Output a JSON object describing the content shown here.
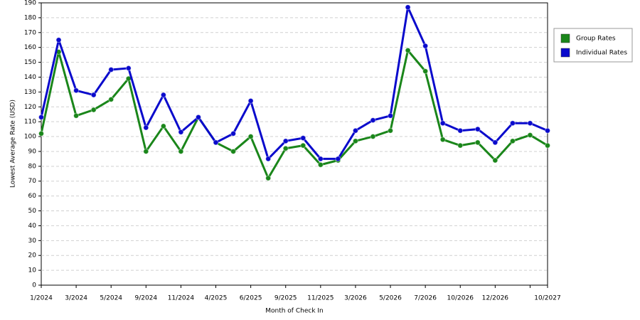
{
  "chart_data": {
    "type": "line",
    "x_label": "Month of Check In",
    "y_label": "Lowest Average Rate (USD)",
    "categories": [
      "1/2024",
      null,
      "3/2024",
      null,
      "5/2024",
      null,
      "9/2024",
      null,
      "11/2024",
      null,
      "4/2025",
      null,
      "6/2025",
      null,
      "9/2025",
      null,
      "11/2025",
      null,
      "3/2026",
      null,
      "5/2026",
      null,
      "7/2026",
      null,
      "10/2026",
      null,
      "12/2026",
      null,
      null,
      "10/2027"
    ],
    "series": [
      {
        "name": "Group Rates",
        "color": "#1a861a",
        "values": [
          102,
          157,
          114,
          118,
          125,
          139,
          90,
          107,
          90,
          113,
          96,
          90,
          100,
          72,
          92,
          94,
          81,
          84,
          97,
          100,
          104,
          158,
          144,
          98,
          94,
          96,
          84,
          97,
          101,
          94
        ]
      },
      {
        "name": "Individual Rates",
        "color": "#0a0acc",
        "values": [
          113,
          165,
          131,
          128,
          145,
          146,
          106,
          128,
          103,
          113,
          96,
          102,
          124,
          85,
          97,
          99,
          85,
          85,
          104,
          111,
          114,
          187,
          161,
          109,
          104,
          105,
          96,
          109,
          109,
          104
        ]
      }
    ],
    "ylim": [
      0,
      190
    ],
    "yticks": [
      0,
      10,
      20,
      30,
      40,
      50,
      60,
      70,
      80,
      90,
      100,
      110,
      120,
      130,
      140,
      150,
      160,
      170,
      180,
      190
    ],
    "grid": true
  }
}
